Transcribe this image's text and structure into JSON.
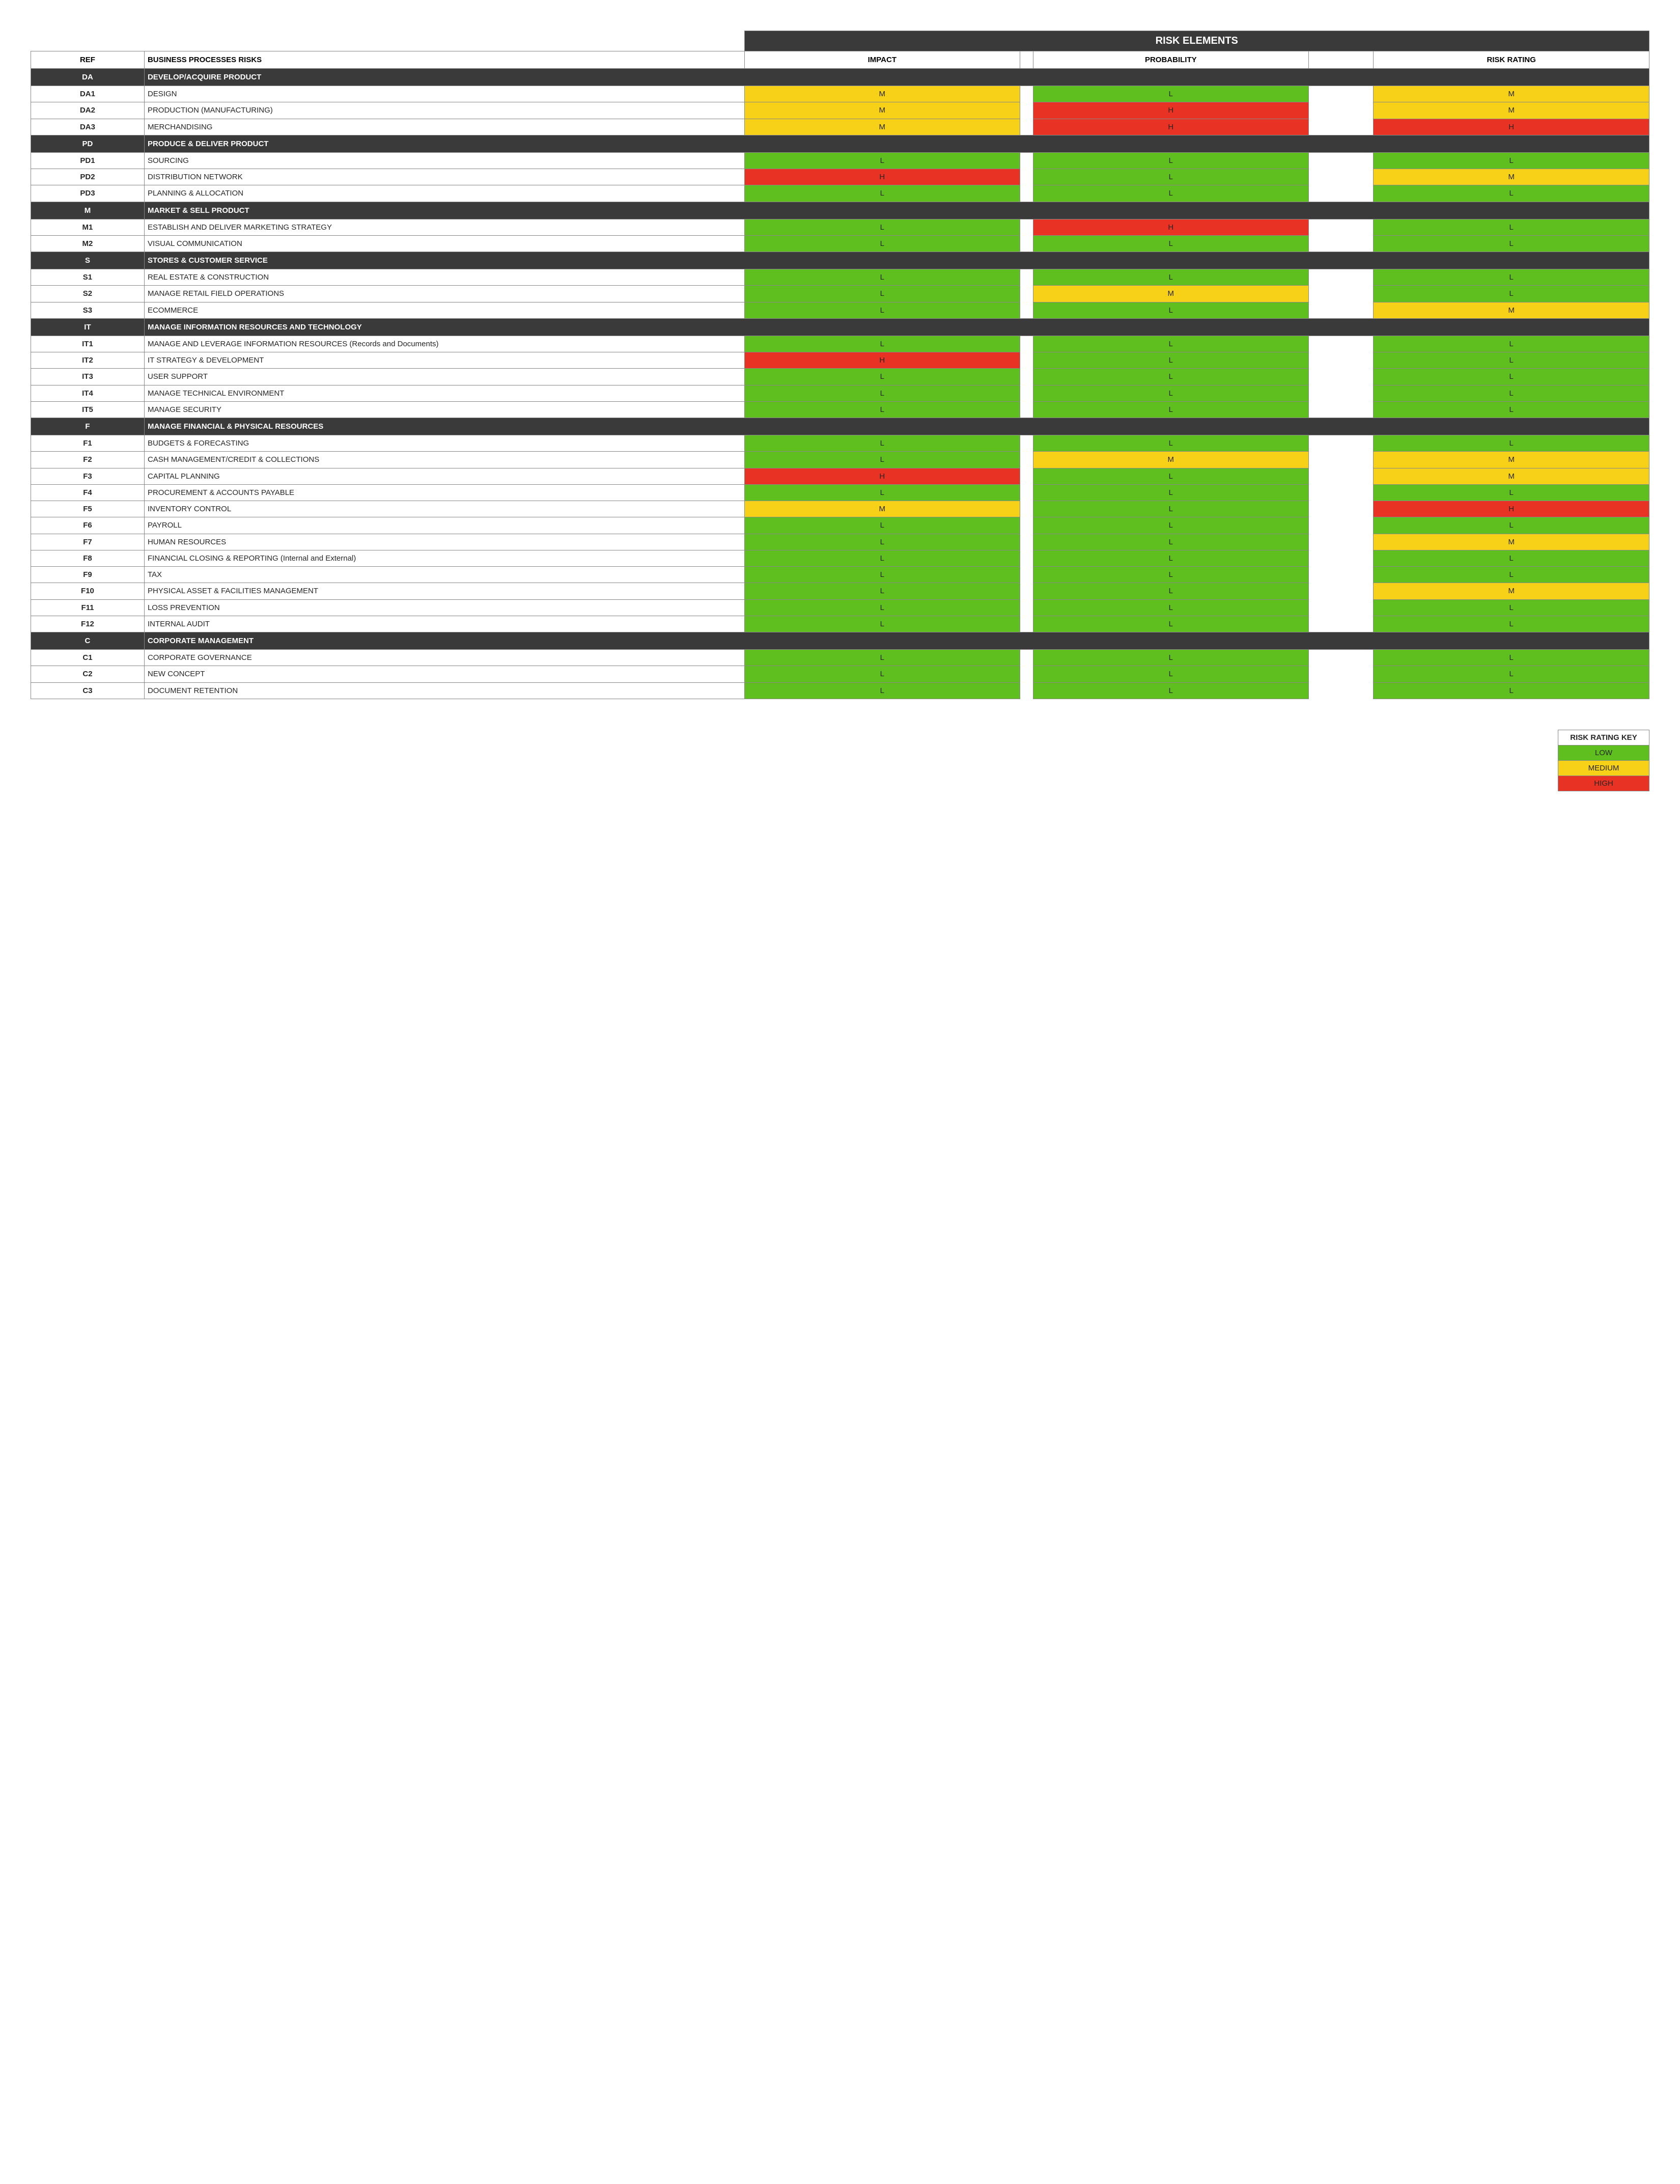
{
  "colors": {
    "L": "#5fbf1f",
    "M": "#f7d117",
    "H": "#e83223",
    "section_bg": "#3a3a3a",
    "section_fg": "#ffffff",
    "border": "#888888",
    "page_bg": "#ffffff",
    "cell_text": "#262626"
  },
  "header": {
    "title": "RISK ELEMENTS",
    "ref": "REF",
    "desc": "BUSINESS PROCESSES RISKS",
    "impact": "IMPACT",
    "probability": "PROBABILITY",
    "rating": "RISK RATING"
  },
  "legend": {
    "title": "RISK RATING KEY",
    "low": "LOW",
    "medium": "MEDIUM",
    "high": "HIGH"
  },
  "sections": [
    {
      "ref": "DA",
      "name": "DEVELOP/ACQUIRE PRODUCT",
      "rows": [
        {
          "ref": "DA1",
          "desc": "DESIGN",
          "impact": "M",
          "prob": "L",
          "rate": "M"
        },
        {
          "ref": "DA2",
          "desc": "PRODUCTION (MANUFACTURING)",
          "impact": "M",
          "prob": "H",
          "rate": "M"
        },
        {
          "ref": "DA3",
          "desc": "MERCHANDISING",
          "impact": "M",
          "prob": "H",
          "rate": "H"
        }
      ]
    },
    {
      "ref": "PD",
      "name": "PRODUCE & DELIVER PRODUCT",
      "rows": [
        {
          "ref": "PD1",
          "desc": "SOURCING",
          "impact": "L",
          "prob": "L",
          "rate": "L"
        },
        {
          "ref": "PD2",
          "desc": "DISTRIBUTION NETWORK",
          "impact": "H",
          "prob": "L",
          "rate": "M"
        },
        {
          "ref": "PD3",
          "desc": "PLANNING & ALLOCATION",
          "impact": "L",
          "prob": "L",
          "rate": "L"
        }
      ]
    },
    {
      "ref": "M",
      "name": "MARKET & SELL PRODUCT",
      "rows": [
        {
          "ref": "M1",
          "desc": "ESTABLISH AND DELIVER MARKETING STRATEGY",
          "impact": "L",
          "prob": "H",
          "rate": "L"
        },
        {
          "ref": "M2",
          "desc": "VISUAL COMMUNICATION",
          "impact": "L",
          "prob": "L",
          "rate": "L"
        }
      ]
    },
    {
      "ref": "S",
      "name": "STORES & CUSTOMER SERVICE",
      "rows": [
        {
          "ref": "S1",
          "desc": "REAL ESTATE & CONSTRUCTION",
          "impact": "L",
          "prob": "L",
          "rate": "L"
        },
        {
          "ref": "S2",
          "desc": "MANAGE RETAIL FIELD OPERATIONS",
          "impact": "L",
          "prob": "M",
          "rate": "L"
        },
        {
          "ref": "S3",
          "desc": "ECOMMERCE",
          "impact": "L",
          "prob": "L",
          "rate": "M"
        }
      ]
    },
    {
      "ref": "IT",
      "name": "MANAGE INFORMATION RESOURCES AND TECHNOLOGY",
      "rows": [
        {
          "ref": "IT1",
          "desc": "MANAGE AND LEVERAGE INFORMATION RESOURCES (Records and Documents)",
          "impact": "L",
          "prob": "L",
          "rate": "L"
        },
        {
          "ref": "IT2",
          "desc": "IT STRATEGY & DEVELOPMENT",
          "impact": "H",
          "prob": "L",
          "rate": "L"
        },
        {
          "ref": "IT3",
          "desc": "USER SUPPORT",
          "impact": "L",
          "prob": "L",
          "rate": "L"
        },
        {
          "ref": "IT4",
          "desc": "MANAGE TECHNICAL ENVIRONMENT",
          "impact": "L",
          "prob": "L",
          "rate": "L"
        },
        {
          "ref": "IT5",
          "desc": "MANAGE SECURITY",
          "impact": "L",
          "prob": "L",
          "rate": "L"
        }
      ]
    },
    {
      "ref": "F",
      "name": "MANAGE FINANCIAL & PHYSICAL RESOURCES",
      "rows": [
        {
          "ref": "F1",
          "desc": "BUDGETS & FORECASTING",
          "impact": "L",
          "prob": "L",
          "rate": "L"
        },
        {
          "ref": "F2",
          "desc": "CASH MANAGEMENT/CREDIT & COLLECTIONS",
          "impact": "L",
          "prob": "M",
          "rate": "M"
        },
        {
          "ref": "F3",
          "desc": "CAPITAL PLANNING",
          "impact": "H",
          "prob": "L",
          "rate": "M"
        },
        {
          "ref": "F4",
          "desc": "PROCUREMENT & ACCOUNTS PAYABLE",
          "impact": "L",
          "prob": "L",
          "rate": "L"
        },
        {
          "ref": "F5",
          "desc": "INVENTORY CONTROL",
          "impact": "M",
          "prob": "L",
          "rate": "H"
        },
        {
          "ref": "F6",
          "desc": "PAYROLL",
          "impact": "L",
          "prob": "L",
          "rate": "L"
        },
        {
          "ref": "F7",
          "desc": "HUMAN RESOURCES",
          "impact": "L",
          "prob": "L",
          "rate": "M"
        },
        {
          "ref": "F8",
          "desc": "FINANCIAL CLOSING & REPORTING (Internal and External)",
          "impact": "L",
          "prob": "L",
          "rate": "L"
        },
        {
          "ref": "F9",
          "desc": "TAX",
          "impact": "L",
          "prob": "L",
          "rate": "L"
        },
        {
          "ref": "F10",
          "desc": "PHYSICAL ASSET & FACILITIES MANAGEMENT",
          "impact": "L",
          "prob": "L",
          "rate": "M"
        },
        {
          "ref": "F11",
          "desc": "LOSS PREVENTION",
          "impact": "L",
          "prob": "L",
          "rate": "L"
        },
        {
          "ref": "F12",
          "desc": "INTERNAL AUDIT",
          "impact": "L",
          "prob": "L",
          "rate": "L"
        }
      ]
    },
    {
      "ref": "C",
      "name": "CORPORATE MANAGEMENT",
      "rows": [
        {
          "ref": "C1",
          "desc": "CORPORATE GOVERNANCE",
          "impact": "L",
          "prob": "L",
          "rate": "L"
        },
        {
          "ref": "C2",
          "desc": "NEW CONCEPT",
          "impact": "L",
          "prob": "L",
          "rate": "L"
        },
        {
          "ref": "C3",
          "desc": "DOCUMENT RETENTION",
          "impact": "L",
          "prob": "L",
          "rate": "L"
        }
      ]
    }
  ]
}
